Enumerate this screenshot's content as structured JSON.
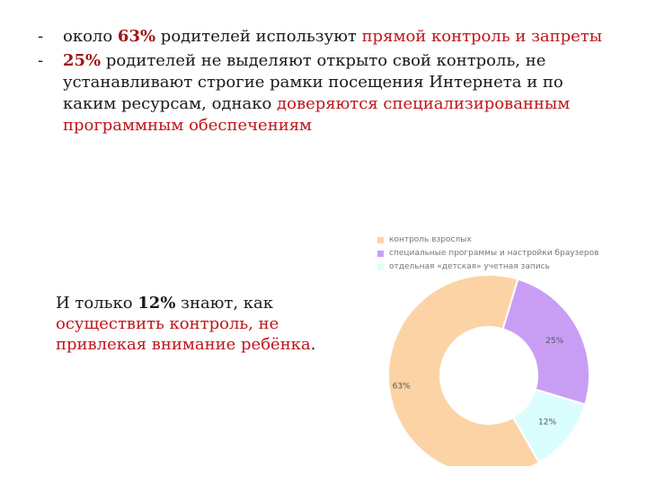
{
  "bullets": [
    {
      "dash": "-",
      "before": "около ",
      "num": "63%",
      "middle": " родителей используют ",
      "highlight": "прямой контроль и запреты",
      "after": ""
    },
    {
      "dash": "-",
      "before": " ",
      "num": "25%",
      "middle": " родителей не выделяют открыто свой контроль, не устанавливают строгие рамки посещения Интернета и по каким ресурсам, однако ",
      "highlight": "доверяются специализированным программным обеспечениям",
      "after": ""
    }
  ],
  "callout": {
    "before": "И только ",
    "num": "12%",
    "middle": " знают, как ",
    "highlight": "осуществить контроль, не привлекая внимание ребёнка",
    "after": "."
  },
  "chart_data": {
    "type": "pie",
    "donut": true,
    "title": "",
    "legend_position": "top",
    "categories": [
      "контроль взрослых",
      "специальные программы и настройки браузеров",
      "отдельная «детская» учетная запись"
    ],
    "values": [
      63,
      25,
      12
    ],
    "labels": [
      "63%",
      "25%",
      "12%"
    ],
    "colors": [
      "#fcd3a4",
      "#c89ef5",
      "#dafefe"
    ]
  }
}
